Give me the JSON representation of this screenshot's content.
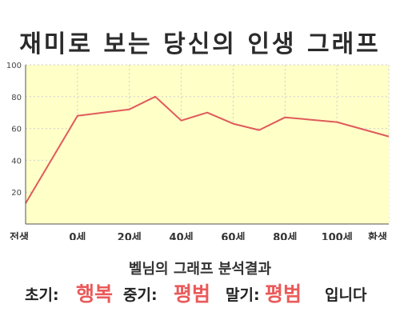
{
  "title": "재미로 보는 당신의 인생 그래프",
  "chart_data": {
    "type": "area",
    "x": [
      -20,
      0,
      20,
      30,
      40,
      50,
      60,
      70,
      80,
      100,
      120
    ],
    "y": [
      13,
      68,
      72,
      80,
      65,
      70,
      63,
      59,
      67,
      64,
      55
    ],
    "xlim": [
      -20,
      120
    ],
    "ylim": [
      0,
      100
    ],
    "yticks": [
      20,
      40,
      60,
      80,
      100
    ],
    "xticks": [
      {
        "value": -20,
        "label": "전생"
      },
      {
        "value": 0,
        "label": "0세"
      },
      {
        "value": 20,
        "label": "20세"
      },
      {
        "value": 40,
        "label": "40세"
      },
      {
        "value": 60,
        "label": "60세"
      },
      {
        "value": 80,
        "label": "80세"
      },
      {
        "value": 100,
        "label": "100세"
      },
      {
        "value": 120,
        "label": "환생"
      }
    ],
    "grid": true,
    "colors": {
      "line": "#e05a5a",
      "fill": "#ffffc8",
      "grid": "#cfcfcf",
      "axis": "#555555"
    }
  },
  "result": {
    "heading": "벨님의 그래프 분석결과",
    "early_label": "초기:",
    "early_value": "행복",
    "mid_label": "중기:",
    "mid_value": "평범",
    "late_label": "말기:",
    "late_value": "평범",
    "ending": "입니다"
  }
}
